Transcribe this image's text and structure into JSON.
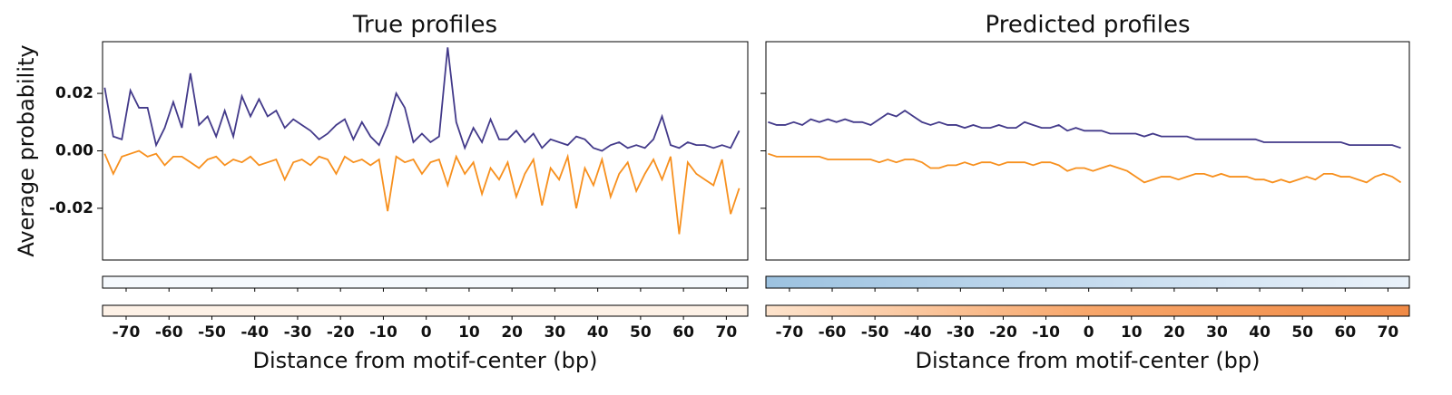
{
  "chart_data": [
    {
      "type": "line",
      "title": "True profiles",
      "xlabel": "Distance from motif-center (bp)",
      "ylabel": "Average probability",
      "x": [
        -75,
        -73,
        -71,
        -69,
        -67,
        -65,
        -63,
        -61,
        -59,
        -57,
        -55,
        -53,
        -51,
        -49,
        -47,
        -45,
        -43,
        -41,
        -39,
        -37,
        -35,
        -33,
        -31,
        -29,
        -27,
        -25,
        -23,
        -21,
        -19,
        -17,
        -15,
        -13,
        -11,
        -9,
        -7,
        -5,
        -3,
        -1,
        1,
        3,
        5,
        7,
        9,
        11,
        13,
        15,
        17,
        19,
        21,
        23,
        25,
        27,
        29,
        31,
        33,
        35,
        37,
        39,
        41,
        43,
        45,
        47,
        49,
        51,
        53,
        55,
        57,
        59,
        61,
        63,
        65,
        67,
        69,
        71,
        73
      ],
      "series": [
        {
          "color": "#433a8a",
          "values": [
            0.022,
            0.005,
            0.004,
            0.021,
            0.015,
            0.015,
            0.002,
            0.008,
            0.017,
            0.008,
            0.027,
            0.009,
            0.012,
            0.005,
            0.014,
            0.005,
            0.019,
            0.012,
            0.018,
            0.012,
            0.014,
            0.008,
            0.011,
            0.009,
            0.007,
            0.004,
            0.006,
            0.009,
            0.011,
            0.004,
            0.01,
            0.005,
            0.002,
            0.009,
            0.02,
            0.015,
            0.003,
            0.006,
            0.003,
            0.005,
            0.036,
            0.01,
            0.001,
            0.008,
            0.003,
            0.011,
            0.004,
            0.004,
            0.007,
            0.003,
            0.006,
            0.001,
            0.004,
            0.003,
            0.002,
            0.005,
            0.004,
            0.001,
            0.0,
            0.002,
            0.003,
            0.001,
            0.002,
            0.001,
            0.004,
            0.012,
            0.002,
            0.001,
            0.003,
            0.002,
            0.002,
            0.001,
            0.002,
            0.001,
            0.007
          ]
        },
        {
          "color": "#f7901e",
          "values": [
            -0.001,
            -0.008,
            -0.002,
            -0.001,
            0.0,
            -0.002,
            -0.001,
            -0.005,
            -0.002,
            -0.002,
            -0.004,
            -0.006,
            -0.003,
            -0.002,
            -0.005,
            -0.003,
            -0.004,
            -0.002,
            -0.005,
            -0.004,
            -0.003,
            -0.01,
            -0.004,
            -0.003,
            -0.005,
            -0.002,
            -0.003,
            -0.008,
            -0.002,
            -0.004,
            -0.003,
            -0.005,
            -0.003,
            -0.021,
            -0.002,
            -0.004,
            -0.003,
            -0.008,
            -0.004,
            -0.003,
            -0.012,
            -0.002,
            -0.008,
            -0.004,
            -0.015,
            -0.006,
            -0.01,
            -0.004,
            -0.016,
            -0.008,
            -0.003,
            -0.019,
            -0.006,
            -0.01,
            -0.002,
            -0.02,
            -0.006,
            -0.012,
            -0.003,
            -0.016,
            -0.008,
            -0.004,
            -0.014,
            -0.008,
            -0.003,
            -0.01,
            -0.002,
            -0.029,
            -0.004,
            -0.008,
            -0.01,
            -0.012,
            -0.003,
            -0.022,
            -0.013
          ]
        }
      ],
      "xlim": [
        -75.5,
        75
      ],
      "xticks": [
        -70,
        -60,
        -50,
        -40,
        -30,
        -20,
        -10,
        0,
        10,
        20,
        30,
        40,
        50,
        60,
        70
      ],
      "ylim": [
        -0.038,
        0.038
      ],
      "yticks": [
        {
          "value": -0.02,
          "label": "-0.02"
        },
        {
          "value": 0,
          "label": "0.00"
        },
        {
          "value": 0.02,
          "label": "0.02"
        }
      ]
    },
    {
      "type": "line",
      "title": "Predicted profiles",
      "xlabel": "Distance from motif-center (bp)",
      "x": [
        -75,
        -73,
        -71,
        -69,
        -67,
        -65,
        -63,
        -61,
        -59,
        -57,
        -55,
        -53,
        -51,
        -49,
        -47,
        -45,
        -43,
        -41,
        -39,
        -37,
        -35,
        -33,
        -31,
        -29,
        -27,
        -25,
        -23,
        -21,
        -19,
        -17,
        -15,
        -13,
        -11,
        -9,
        -7,
        -5,
        -3,
        -1,
        1,
        3,
        5,
        7,
        9,
        11,
        13,
        15,
        17,
        19,
        21,
        23,
        25,
        27,
        29,
        31,
        33,
        35,
        37,
        39,
        41,
        43,
        45,
        47,
        49,
        51,
        53,
        55,
        57,
        59,
        61,
        63,
        65,
        67,
        69,
        71,
        73
      ],
      "series": [
        {
          "color": "#433a8a",
          "values": [
            0.01,
            0.009,
            0.009,
            0.01,
            0.009,
            0.011,
            0.01,
            0.011,
            0.01,
            0.011,
            0.01,
            0.01,
            0.009,
            0.011,
            0.013,
            0.012,
            0.014,
            0.012,
            0.01,
            0.009,
            0.01,
            0.009,
            0.009,
            0.008,
            0.009,
            0.008,
            0.008,
            0.009,
            0.008,
            0.008,
            0.01,
            0.009,
            0.008,
            0.008,
            0.009,
            0.007,
            0.008,
            0.007,
            0.007,
            0.007,
            0.006,
            0.006,
            0.006,
            0.006,
            0.005,
            0.006,
            0.005,
            0.005,
            0.005,
            0.005,
            0.004,
            0.004,
            0.004,
            0.004,
            0.004,
            0.004,
            0.004,
            0.004,
            0.003,
            0.003,
            0.003,
            0.003,
            0.003,
            0.003,
            0.003,
            0.003,
            0.003,
            0.003,
            0.002,
            0.002,
            0.002,
            0.002,
            0.002,
            0.002,
            0.001
          ]
        },
        {
          "color": "#f7901e",
          "values": [
            -0.001,
            -0.002,
            -0.002,
            -0.002,
            -0.002,
            -0.002,
            -0.002,
            -0.003,
            -0.003,
            -0.003,
            -0.003,
            -0.003,
            -0.003,
            -0.004,
            -0.003,
            -0.004,
            -0.003,
            -0.003,
            -0.004,
            -0.006,
            -0.006,
            -0.005,
            -0.005,
            -0.004,
            -0.005,
            -0.004,
            -0.004,
            -0.005,
            -0.004,
            -0.004,
            -0.004,
            -0.005,
            -0.004,
            -0.004,
            -0.005,
            -0.007,
            -0.006,
            -0.006,
            -0.007,
            -0.006,
            -0.005,
            -0.006,
            -0.007,
            -0.009,
            -0.011,
            -0.01,
            -0.009,
            -0.009,
            -0.01,
            -0.009,
            -0.008,
            -0.008,
            -0.009,
            -0.008,
            -0.009,
            -0.009,
            -0.009,
            -0.01,
            -0.01,
            -0.011,
            -0.01,
            -0.011,
            -0.01,
            -0.009,
            -0.01,
            -0.008,
            -0.008,
            -0.009,
            -0.009,
            -0.01,
            -0.011,
            -0.009,
            -0.008,
            -0.009,
            -0.011
          ]
        }
      ],
      "xlim": [
        -75.5,
        75
      ],
      "xticks": [
        -70,
        -60,
        -50,
        -40,
        -30,
        -20,
        -10,
        0,
        10,
        20,
        30,
        40,
        50,
        60,
        70
      ],
      "ylim": [
        -0.038,
        0.038
      ],
      "yticks": [
        -0.02,
        0,
        0.02
      ]
    }
  ]
}
